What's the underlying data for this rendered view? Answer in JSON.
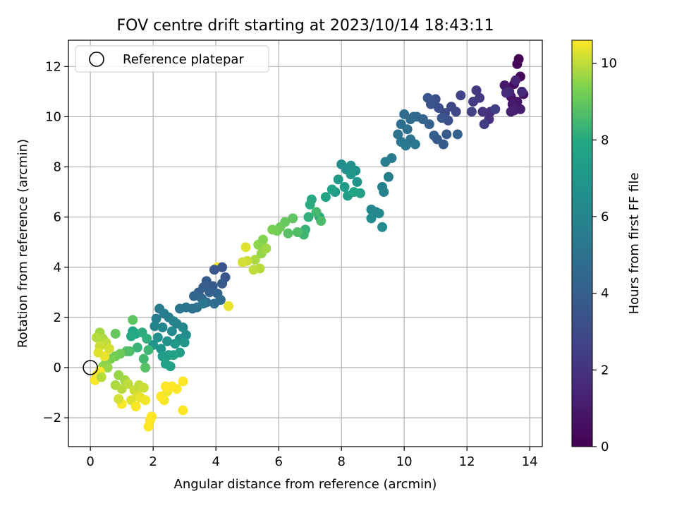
{
  "chart_data": {
    "type": "scatter",
    "title": "FOV centre drift starting at 2023/10/14 18:43:11",
    "xlabel": "Angular distance from reference (arcmin)",
    "ylabel": "Rotation from reference (arcmin)",
    "xlim": [
      -0.7,
      14.4
    ],
    "ylim": [
      -3.15,
      13.05
    ],
    "x_ticks": [
      0,
      2,
      4,
      6,
      8,
      10,
      12,
      14
    ],
    "y_ticks": [
      -2,
      0,
      2,
      4,
      6,
      8,
      10,
      12
    ],
    "x_tick_labels": [
      "0",
      "2",
      "4",
      "6",
      "8",
      "10",
      "12",
      "14"
    ],
    "y_tick_labels": [
      "−2",
      "0",
      "2",
      "4",
      "6",
      "8",
      "10",
      "12"
    ],
    "grid": true,
    "legend": {
      "position": "upper-left",
      "entries": [
        "Reference platepar"
      ]
    },
    "reference_point": {
      "x": 0,
      "y": 0,
      "label": "Reference platepar",
      "marker": "open-circle"
    },
    "colorbar": {
      "label": "Hours from first FF file",
      "range": [
        0,
        10.6
      ],
      "ticks": [
        0,
        2,
        4,
        6,
        8,
        10
      ],
      "tick_labels": [
        "0",
        "2",
        "4",
        "6",
        "8",
        "10"
      ],
      "colormap": "viridis"
    },
    "points": [
      [
        13.65,
        12.3,
        0.1
      ],
      [
        13.6,
        12.1,
        0.2
      ],
      [
        13.7,
        11.6,
        0.3
      ],
      [
        13.5,
        11.3,
        0.4
      ],
      [
        13.3,
        11.1,
        0.5
      ],
      [
        13.8,
        10.9,
        0.6
      ],
      [
        13.4,
        10.8,
        0.7
      ],
      [
        13.6,
        10.6,
        0.8
      ],
      [
        13.2,
        11.25,
        0.9
      ],
      [
        13.45,
        10.5,
        1.0
      ],
      [
        13.7,
        10.3,
        1.1
      ],
      [
        13.5,
        10.25,
        1.2
      ],
      [
        13.4,
        10.2,
        1.3
      ],
      [
        13.55,
        11.45,
        1.4
      ],
      [
        13.35,
        11.0,
        1.5
      ],
      [
        13.75,
        11.0,
        1.6
      ],
      [
        13.25,
        10.95,
        1.7
      ],
      [
        12.75,
        10.2,
        1.8
      ],
      [
        12.7,
        9.9,
        1.9
      ],
      [
        12.5,
        10.2,
        2.0
      ],
      [
        12.3,
        11.05,
        2.1
      ],
      [
        12.4,
        10.75,
        2.2
      ],
      [
        12.2,
        10.6,
        2.3
      ],
      [
        12.55,
        9.7,
        2.4
      ],
      [
        12.9,
        10.3,
        2.5
      ],
      [
        12.15,
        10.2,
        2.6
      ],
      [
        11.8,
        10.85,
        2.7
      ],
      [
        11.65,
        10.2,
        2.8
      ],
      [
        11.5,
        10.4,
        2.9
      ],
      [
        11.3,
        10.15,
        3.0
      ],
      [
        11.1,
        10.35,
        3.1
      ],
      [
        11.4,
        9.85,
        3.2
      ],
      [
        11.0,
        10.7,
        3.3
      ],
      [
        10.85,
        10.5,
        3.4
      ],
      [
        10.75,
        10.75,
        3.5
      ],
      [
        11.2,
        9.95,
        3.6
      ],
      [
        11.05,
        9.1,
        3.7
      ],
      [
        11.35,
        9.3,
        3.8
      ],
      [
        11.25,
        8.9,
        3.9
      ],
      [
        10.95,
        9.25,
        4.0
      ],
      [
        11.7,
        9.3,
        4.1
      ],
      [
        10.8,
        9.7,
        4.2
      ],
      [
        10.6,
        9.9,
        4.3
      ],
      [
        10.4,
        10.0,
        4.4
      ],
      [
        10.3,
        10.0,
        4.5
      ],
      [
        10.2,
        9.9,
        4.6
      ],
      [
        10.0,
        10.1,
        4.7
      ],
      [
        9.9,
        9.7,
        4.8
      ],
      [
        10.1,
        9.5,
        4.9
      ],
      [
        9.8,
        9.3,
        5.0
      ],
      [
        10.2,
        9.1,
        5.1
      ],
      [
        9.9,
        9.0,
        5.2
      ],
      [
        10.35,
        8.9,
        5.3
      ],
      [
        10.05,
        8.85,
        5.4
      ],
      [
        9.6,
        8.35,
        5.5
      ],
      [
        9.4,
        8.2,
        5.6
      ],
      [
        9.5,
        7.6,
        5.7
      ],
      [
        9.3,
        7.2,
        5.8
      ],
      [
        9.35,
        7.0,
        5.9
      ],
      [
        9.1,
        6.2,
        6.0
      ],
      [
        8.95,
        6.3,
        6.1
      ],
      [
        9.2,
        6.15,
        6.2
      ],
      [
        8.95,
        5.95,
        6.3
      ],
      [
        9.3,
        5.6,
        6.4
      ],
      [
        8.0,
        8.1,
        6.5
      ],
      [
        8.3,
        8.05,
        6.6
      ],
      [
        8.15,
        7.9,
        6.7
      ],
      [
        8.45,
        7.85,
        6.8
      ],
      [
        8.5,
        7.4,
        6.9
      ],
      [
        8.3,
        7.7,
        7.0
      ],
      [
        7.9,
        7.5,
        7.1
      ],
      [
        7.8,
        7.0,
        7.2
      ],
      [
        8.1,
        7.2,
        7.3
      ],
      [
        8.2,
        6.85,
        7.4
      ],
      [
        8.6,
        6.95,
        7.5
      ],
      [
        7.7,
        7.1,
        7.6
      ],
      [
        7.5,
        6.8,
        7.7
      ],
      [
        8.4,
        7.0,
        7.8
      ],
      [
        7.3,
        6.0,
        7.9
      ],
      [
        7.05,
        6.7,
        8.0
      ],
      [
        7.0,
        6.5,
        8.1
      ],
      [
        6.95,
        6.0,
        8.2
      ],
      [
        6.85,
        5.5,
        8.3
      ],
      [
        6.8,
        5.3,
        8.4
      ],
      [
        7.2,
        6.2,
        8.5
      ],
      [
        7.35,
        5.85,
        8.6
      ],
      [
        6.6,
        5.4,
        8.7
      ],
      [
        6.3,
        5.35,
        8.8
      ],
      [
        6.45,
        5.95,
        8.9
      ],
      [
        6.2,
        5.8,
        9.0
      ],
      [
        6.05,
        5.6,
        9.1
      ],
      [
        5.95,
        5.45,
        9.2
      ],
      [
        5.8,
        5.5,
        9.3
      ],
      [
        5.5,
        5.1,
        9.4
      ],
      [
        5.35,
        4.9,
        9.5
      ],
      [
        5.45,
        4.55,
        9.6
      ],
      [
        5.6,
        4.75,
        9.7
      ],
      [
        5.25,
        4.3,
        9.8
      ],
      [
        5.4,
        3.95,
        9.9
      ],
      [
        5.2,
        3.9,
        10.0
      ],
      [
        5.0,
        4.25,
        10.1
      ],
      [
        4.85,
        4.2,
        10.2
      ],
      [
        4.95,
        4.8,
        10.3
      ],
      [
        4.4,
        2.45,
        10.4
      ],
      [
        4.05,
        4.0,
        10.5
      ],
      [
        4.2,
        4.0,
        3.4
      ],
      [
        3.95,
        3.9,
        3.5
      ],
      [
        4.3,
        3.6,
        3.6
      ],
      [
        4.2,
        3.35,
        3.7
      ],
      [
        3.9,
        3.25,
        3.8
      ],
      [
        3.7,
        3.45,
        3.9
      ],
      [
        3.6,
        3.2,
        4.0
      ],
      [
        3.45,
        3.0,
        4.1
      ],
      [
        3.8,
        3.0,
        4.2
      ],
      [
        4.05,
        2.95,
        4.3
      ],
      [
        3.3,
        2.85,
        4.4
      ],
      [
        3.55,
        2.75,
        4.5
      ],
      [
        3.7,
        2.6,
        4.6
      ],
      [
        4.15,
        2.7,
        4.7
      ],
      [
        3.95,
        2.55,
        4.8
      ],
      [
        3.25,
        2.35,
        4.9
      ],
      [
        3.4,
        2.4,
        5.0
      ],
      [
        3.05,
        2.4,
        5.1
      ],
      [
        2.85,
        2.35,
        5.2
      ],
      [
        3.6,
        2.55,
        5.3
      ],
      [
        2.2,
        2.35,
        5.4
      ],
      [
        2.35,
        2.15,
        5.5
      ],
      [
        2.5,
        2.0,
        5.6
      ],
      [
        2.1,
        1.95,
        5.7
      ],
      [
        2.65,
        1.85,
        5.8
      ],
      [
        2.75,
        1.75,
        5.9
      ],
      [
        2.05,
        1.65,
        6.0
      ],
      [
        2.3,
        1.6,
        6.1
      ],
      [
        2.95,
        1.6,
        6.2
      ],
      [
        2.6,
        1.45,
        6.3
      ],
      [
        3.05,
        1.3,
        6.4
      ],
      [
        2.85,
        1.15,
        6.5
      ],
      [
        2.15,
        1.2,
        6.6
      ],
      [
        2.45,
        1.05,
        6.7
      ],
      [
        2.0,
        0.9,
        6.8
      ],
      [
        2.25,
        0.75,
        6.9
      ],
      [
        3.0,
        1.0,
        7.0
      ],
      [
        2.7,
        0.95,
        7.1
      ],
      [
        2.5,
        0.5,
        7.2
      ],
      [
        2.3,
        0.45,
        7.3
      ],
      [
        2.85,
        0.6,
        7.4
      ],
      [
        2.4,
        0.15,
        7.5
      ],
      [
        2.55,
        0.05,
        7.6
      ],
      [
        2.65,
        0.5,
        7.7
      ],
      [
        1.35,
        1.45,
        7.8
      ],
      [
        1.45,
        1.35,
        7.9
      ],
      [
        1.3,
        1.25,
        8.0
      ],
      [
        1.65,
        1.4,
        8.1
      ],
      [
        1.8,
        1.15,
        8.2
      ],
      [
        1.5,
        0.8,
        8.3
      ],
      [
        1.85,
        0.7,
        8.4
      ],
      [
        1.7,
        0.35,
        8.5
      ],
      [
        1.25,
        0.65,
        8.6
      ],
      [
        1.15,
        0.65,
        8.7
      ],
      [
        1.75,
        0.0,
        8.8
      ],
      [
        1.35,
        1.9,
        8.9
      ],
      [
        0.8,
        1.35,
        9.0
      ],
      [
        0.95,
        0.55,
        9.1
      ],
      [
        0.8,
        0.45,
        9.2
      ],
      [
        0.65,
        0.35,
        9.3
      ],
      [
        0.5,
        0.2,
        9.4
      ],
      [
        0.4,
        0.05,
        9.5
      ],
      [
        0.55,
        0.0,
        9.6
      ],
      [
        0.3,
        1.4,
        9.7
      ],
      [
        0.4,
        1.15,
        9.8
      ],
      [
        0.2,
        1.2,
        9.9
      ],
      [
        0.5,
        1.0,
        10.0
      ],
      [
        0.3,
        0.85,
        10.1
      ],
      [
        0.6,
        0.75,
        10.2
      ],
      [
        0.25,
        0.6,
        10.3
      ],
      [
        0.45,
        0.45,
        10.4
      ],
      [
        0.2,
        -0.3,
        10.5
      ],
      [
        0.15,
        -0.5,
        10.55
      ],
      [
        0.3,
        -0.15,
        10.6
      ],
      [
        0.35,
        -0.38,
        9.9
      ],
      [
        0.9,
        -0.3,
        9.6
      ],
      [
        1.1,
        -0.5,
        9.7
      ],
      [
        0.8,
        -0.7,
        9.8
      ],
      [
        1.0,
        -0.85,
        9.9
      ],
      [
        1.2,
        -0.65,
        10.0
      ],
      [
        1.4,
        -0.9,
        10.1
      ],
      [
        1.5,
        -1.1,
        10.2
      ],
      [
        1.3,
        -1.3,
        10.3
      ],
      [
        1.6,
        -1.2,
        10.4
      ],
      [
        1.75,
        -1.3,
        10.5
      ],
      [
        1.45,
        -1.55,
        10.55
      ],
      [
        1.0,
        -1.45,
        10.6
      ],
      [
        1.9,
        -2.1,
        10.6
      ],
      [
        1.95,
        -1.95,
        10.6
      ],
      [
        1.85,
        -2.35,
        10.6
      ],
      [
        0.9,
        -1.25,
        10.2
      ],
      [
        1.55,
        -0.7,
        10.0
      ],
      [
        1.7,
        -0.8,
        10.1
      ],
      [
        2.35,
        -1.3,
        10.5
      ],
      [
        2.25,
        -1.15,
        10.6
      ],
      [
        2.45,
        -0.95,
        10.5
      ],
      [
        2.4,
        -0.75,
        10.6
      ],
      [
        2.6,
        -0.75,
        10.6
      ],
      [
        2.75,
        -0.85,
        10.6
      ],
      [
        2.95,
        -0.55,
        10.6
      ],
      [
        2.95,
        -1.7,
        10.6
      ]
    ]
  }
}
